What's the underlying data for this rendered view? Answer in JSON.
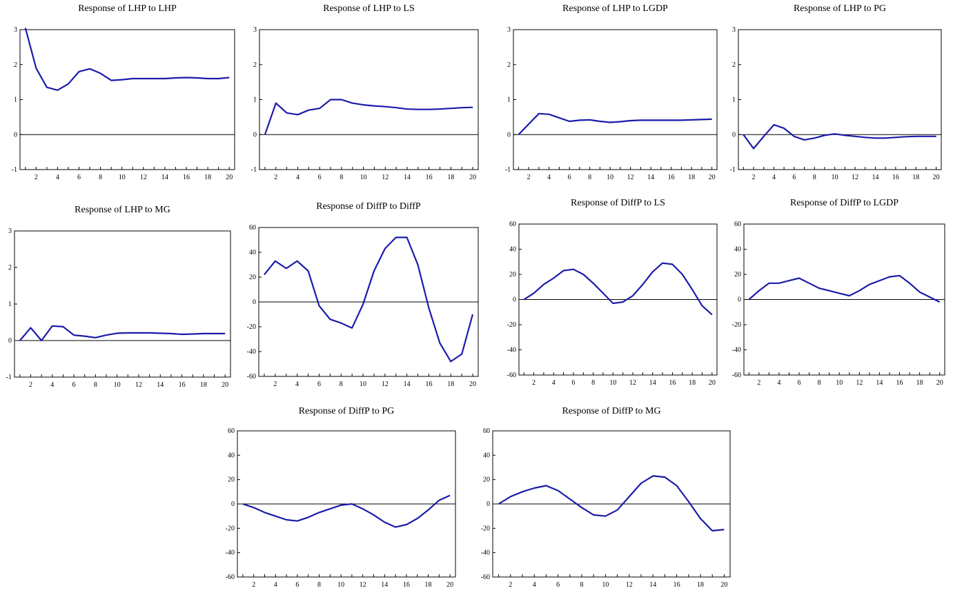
{
  "chart_data": [
    {
      "type": "line",
      "title": "Response of LHP to LHP",
      "x": [
        1,
        2,
        3,
        4,
        5,
        6,
        7,
        8,
        9,
        10,
        11,
        12,
        13,
        14,
        15,
        16,
        17,
        18,
        19,
        20
      ],
      "xticks": [
        2,
        4,
        6,
        8,
        10,
        12,
        14,
        16,
        18,
        20
      ],
      "ylim": [
        -1,
        3
      ],
      "yticks": [
        -1,
        0,
        1,
        2,
        3
      ],
      "series": [
        {
          "values": [
            3.05,
            1.9,
            1.35,
            1.27,
            1.45,
            1.8,
            1.88,
            1.75,
            1.55,
            1.57,
            1.6,
            1.6,
            1.6,
            1.6,
            1.62,
            1.63,
            1.62,
            1.6,
            1.6,
            1.63
          ],
          "color": "#1a1aaa"
        }
      ]
    },
    {
      "type": "line",
      "title": "Response of LHP to LS",
      "x": [
        1,
        2,
        3,
        4,
        5,
        6,
        7,
        8,
        9,
        10,
        11,
        12,
        13,
        14,
        15,
        16,
        17,
        18,
        19,
        20
      ],
      "xticks": [
        2,
        4,
        6,
        8,
        10,
        12,
        14,
        16,
        18,
        20
      ],
      "ylim": [
        -1,
        3
      ],
      "yticks": [
        -1,
        0,
        1,
        2,
        3
      ],
      "series": [
        {
          "values": [
            0.0,
            0.9,
            0.62,
            0.57,
            0.7,
            0.75,
            1.0,
            1.0,
            0.9,
            0.85,
            0.82,
            0.8,
            0.77,
            0.73,
            0.72,
            0.72,
            0.73,
            0.75,
            0.77,
            0.78
          ],
          "color": "#1a1aaa"
        }
      ]
    },
    {
      "type": "line",
      "title": "Response of LHP to LGDP",
      "x": [
        1,
        2,
        3,
        4,
        5,
        6,
        7,
        8,
        9,
        10,
        11,
        12,
        13,
        14,
        15,
        16,
        17,
        18,
        19,
        20
      ],
      "xticks": [
        2,
        4,
        6,
        8,
        10,
        12,
        14,
        16,
        18,
        20
      ],
      "ylim": [
        -1,
        3
      ],
      "yticks": [
        -1,
        0,
        1,
        2,
        3
      ],
      "series": [
        {
          "values": [
            0.0,
            0.3,
            0.6,
            0.58,
            0.48,
            0.38,
            0.41,
            0.42,
            0.38,
            0.35,
            0.37,
            0.4,
            0.41,
            0.41,
            0.41,
            0.41,
            0.41,
            0.42,
            0.43,
            0.44
          ],
          "color": "#1a1aaa"
        }
      ]
    },
    {
      "type": "line",
      "title": "Response of LHP to PG",
      "x": [
        1,
        2,
        3,
        4,
        5,
        6,
        7,
        8,
        9,
        10,
        11,
        12,
        13,
        14,
        15,
        16,
        17,
        18,
        19,
        20
      ],
      "xticks": [
        2,
        4,
        6,
        8,
        10,
        12,
        14,
        16,
        18,
        20
      ],
      "ylim": [
        -1,
        3
      ],
      "yticks": [
        -1,
        0,
        1,
        2,
        3
      ],
      "series": [
        {
          "values": [
            0.0,
            -0.4,
            -0.05,
            0.28,
            0.18,
            -0.05,
            -0.15,
            -0.1,
            -0.02,
            0.02,
            -0.02,
            -0.05,
            -0.08,
            -0.1,
            -0.1,
            -0.08,
            -0.06,
            -0.05,
            -0.05,
            -0.05
          ],
          "color": "#1a1aaa"
        }
      ]
    },
    {
      "type": "line",
      "title": "Response of LHP to MG",
      "x": [
        1,
        2,
        3,
        4,
        5,
        6,
        7,
        8,
        9,
        10,
        11,
        12,
        13,
        14,
        15,
        16,
        17,
        18,
        19,
        20
      ],
      "xticks": [
        2,
        4,
        6,
        8,
        10,
        12,
        14,
        16,
        18,
        20
      ],
      "ylim": [
        -1,
        3
      ],
      "yticks": [
        -1,
        0,
        1,
        2,
        3
      ],
      "series": [
        {
          "values": [
            0.0,
            0.35,
            0.0,
            0.4,
            0.38,
            0.15,
            0.12,
            0.08,
            0.15,
            0.2,
            0.21,
            0.21,
            0.21,
            0.2,
            0.19,
            0.17,
            0.18,
            0.19,
            0.19,
            0.19
          ],
          "color": "#1a1aaa"
        }
      ]
    },
    {
      "type": "line",
      "title": "Response of DiffP to DiffP",
      "x": [
        1,
        2,
        3,
        4,
        5,
        6,
        7,
        8,
        9,
        10,
        11,
        12,
        13,
        14,
        15,
        16,
        17,
        18,
        19,
        20
      ],
      "xticks": [
        2,
        4,
        6,
        8,
        10,
        12,
        14,
        16,
        18,
        20
      ],
      "ylim": [
        -60,
        60
      ],
      "yticks": [
        -60,
        -40,
        -20,
        0,
        20,
        40,
        60
      ],
      "series": [
        {
          "values": [
            22,
            33,
            27,
            33,
            25,
            -3,
            -14,
            -17,
            -21,
            -2,
            25,
            43,
            52,
            52,
            30,
            -5,
            -33,
            -48,
            -42,
            -10
          ],
          "color": "#1a1aaa"
        }
      ]
    },
    {
      "type": "line",
      "title": "Response of DiffP to LS",
      "x": [
        1,
        2,
        3,
        4,
        5,
        6,
        7,
        8,
        9,
        10,
        11,
        12,
        13,
        14,
        15,
        16,
        17,
        18,
        19,
        20
      ],
      "xticks": [
        2,
        4,
        6,
        8,
        10,
        12,
        14,
        16,
        18,
        20
      ],
      "ylim": [
        -60,
        60
      ],
      "yticks": [
        -60,
        -40,
        -20,
        0,
        20,
        40,
        60
      ],
      "series": [
        {
          "values": [
            0,
            5,
            12,
            17,
            23,
            24,
            20,
            13,
            5,
            -3,
            -2,
            3,
            12,
            22,
            29,
            28,
            20,
            8,
            -5,
            -12
          ],
          "color": "#1a1aaa"
        }
      ]
    },
    {
      "type": "line",
      "title": "Response of DiffP to LGDP",
      "x": [
        1,
        2,
        3,
        4,
        5,
        6,
        7,
        8,
        9,
        10,
        11,
        12,
        13,
        14,
        15,
        16,
        17,
        18,
        19,
        20
      ],
      "xticks": [
        2,
        4,
        6,
        8,
        10,
        12,
        14,
        16,
        18,
        20
      ],
      "ylim": [
        -60,
        60
      ],
      "yticks": [
        -60,
        -40,
        -20,
        0,
        20,
        40,
        60
      ],
      "series": [
        {
          "values": [
            0,
            7,
            13,
            13,
            15,
            17,
            13,
            9,
            7,
            5,
            3,
            7,
            12,
            15,
            18,
            19,
            13,
            6,
            2,
            -2
          ],
          "color": "#1a1aaa"
        }
      ]
    },
    {
      "type": "line",
      "title": "Response of DiffP to PG",
      "x": [
        1,
        2,
        3,
        4,
        5,
        6,
        7,
        8,
        9,
        10,
        11,
        12,
        13,
        14,
        15,
        16,
        17,
        18,
        19,
        20
      ],
      "xticks": [
        2,
        4,
        6,
        8,
        10,
        12,
        14,
        16,
        18,
        20
      ],
      "ylim": [
        -60,
        60
      ],
      "yticks": [
        -60,
        -40,
        -20,
        0,
        20,
        40,
        60
      ],
      "series": [
        {
          "values": [
            0,
            -3,
            -7,
            -10,
            -13,
            -14,
            -11,
            -7,
            -4,
            -1,
            0,
            -4,
            -9,
            -15,
            -19,
            -17,
            -12,
            -5,
            3,
            7
          ],
          "color": "#1a1aaa"
        }
      ]
    },
    {
      "type": "line",
      "title": "Response of DiffP to MG",
      "x": [
        1,
        2,
        3,
        4,
        5,
        6,
        7,
        8,
        9,
        10,
        11,
        12,
        13,
        14,
        15,
        16,
        17,
        18,
        19,
        20
      ],
      "xticks": [
        2,
        4,
        6,
        8,
        10,
        12,
        14,
        16,
        18,
        20
      ],
      "ylim": [
        -60,
        60
      ],
      "yticks": [
        -60,
        -40,
        -20,
        0,
        20,
        40,
        60
      ],
      "series": [
        {
          "values": [
            0,
            6,
            10,
            13,
            15,
            11,
            4,
            -3,
            -9,
            -10,
            -5,
            6,
            17,
            23,
            22,
            15,
            2,
            -12,
            -22,
            -21
          ],
          "color": "#1a1aaa"
        }
      ]
    }
  ]
}
